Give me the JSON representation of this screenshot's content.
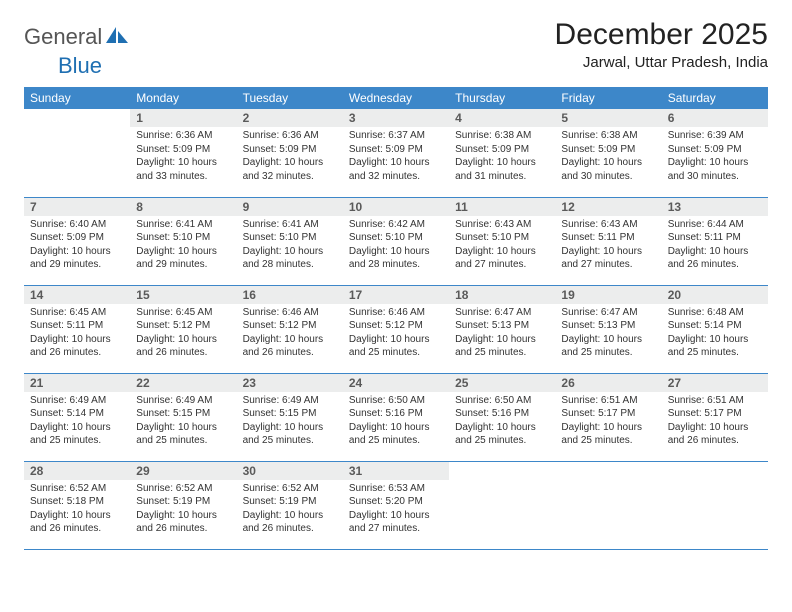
{
  "brand": {
    "general": "General",
    "blue": "Blue"
  },
  "title": "December 2025",
  "location": "Jarwal, Uttar Pradesh, India",
  "colors": {
    "header_bg": "#3d87c9",
    "header_fg": "#ffffff",
    "daynum_bg": "#eceded",
    "row_divider": "#3d87c9",
    "logo_blue": "#1f6fb2",
    "text": "#333333",
    "background": "#ffffff"
  },
  "fonts": {
    "title_size_pt": 22,
    "location_size_pt": 11,
    "weekday_size_pt": 9,
    "daynum_size_pt": 9,
    "body_size_pt": 7.5
  },
  "weekdays": [
    "Sunday",
    "Monday",
    "Tuesday",
    "Wednesday",
    "Thursday",
    "Friday",
    "Saturday"
  ],
  "weeks": [
    [
      {
        "empty": true
      },
      {
        "num": "1",
        "sunrise": "Sunrise: 6:36 AM",
        "sunset": "Sunset: 5:09 PM",
        "daylight": "Daylight: 10 hours and 33 minutes."
      },
      {
        "num": "2",
        "sunrise": "Sunrise: 6:36 AM",
        "sunset": "Sunset: 5:09 PM",
        "daylight": "Daylight: 10 hours and 32 minutes."
      },
      {
        "num": "3",
        "sunrise": "Sunrise: 6:37 AM",
        "sunset": "Sunset: 5:09 PM",
        "daylight": "Daylight: 10 hours and 32 minutes."
      },
      {
        "num": "4",
        "sunrise": "Sunrise: 6:38 AM",
        "sunset": "Sunset: 5:09 PM",
        "daylight": "Daylight: 10 hours and 31 minutes."
      },
      {
        "num": "5",
        "sunrise": "Sunrise: 6:38 AM",
        "sunset": "Sunset: 5:09 PM",
        "daylight": "Daylight: 10 hours and 30 minutes."
      },
      {
        "num": "6",
        "sunrise": "Sunrise: 6:39 AM",
        "sunset": "Sunset: 5:09 PM",
        "daylight": "Daylight: 10 hours and 30 minutes."
      }
    ],
    [
      {
        "num": "7",
        "sunrise": "Sunrise: 6:40 AM",
        "sunset": "Sunset: 5:09 PM",
        "daylight": "Daylight: 10 hours and 29 minutes."
      },
      {
        "num": "8",
        "sunrise": "Sunrise: 6:41 AM",
        "sunset": "Sunset: 5:10 PM",
        "daylight": "Daylight: 10 hours and 29 minutes."
      },
      {
        "num": "9",
        "sunrise": "Sunrise: 6:41 AM",
        "sunset": "Sunset: 5:10 PM",
        "daylight": "Daylight: 10 hours and 28 minutes."
      },
      {
        "num": "10",
        "sunrise": "Sunrise: 6:42 AM",
        "sunset": "Sunset: 5:10 PM",
        "daylight": "Daylight: 10 hours and 28 minutes."
      },
      {
        "num": "11",
        "sunrise": "Sunrise: 6:43 AM",
        "sunset": "Sunset: 5:10 PM",
        "daylight": "Daylight: 10 hours and 27 minutes."
      },
      {
        "num": "12",
        "sunrise": "Sunrise: 6:43 AM",
        "sunset": "Sunset: 5:11 PM",
        "daylight": "Daylight: 10 hours and 27 minutes."
      },
      {
        "num": "13",
        "sunrise": "Sunrise: 6:44 AM",
        "sunset": "Sunset: 5:11 PM",
        "daylight": "Daylight: 10 hours and 26 minutes."
      }
    ],
    [
      {
        "num": "14",
        "sunrise": "Sunrise: 6:45 AM",
        "sunset": "Sunset: 5:11 PM",
        "daylight": "Daylight: 10 hours and 26 minutes."
      },
      {
        "num": "15",
        "sunrise": "Sunrise: 6:45 AM",
        "sunset": "Sunset: 5:12 PM",
        "daylight": "Daylight: 10 hours and 26 minutes."
      },
      {
        "num": "16",
        "sunrise": "Sunrise: 6:46 AM",
        "sunset": "Sunset: 5:12 PM",
        "daylight": "Daylight: 10 hours and 26 minutes."
      },
      {
        "num": "17",
        "sunrise": "Sunrise: 6:46 AM",
        "sunset": "Sunset: 5:12 PM",
        "daylight": "Daylight: 10 hours and 25 minutes."
      },
      {
        "num": "18",
        "sunrise": "Sunrise: 6:47 AM",
        "sunset": "Sunset: 5:13 PM",
        "daylight": "Daylight: 10 hours and 25 minutes."
      },
      {
        "num": "19",
        "sunrise": "Sunrise: 6:47 AM",
        "sunset": "Sunset: 5:13 PM",
        "daylight": "Daylight: 10 hours and 25 minutes."
      },
      {
        "num": "20",
        "sunrise": "Sunrise: 6:48 AM",
        "sunset": "Sunset: 5:14 PM",
        "daylight": "Daylight: 10 hours and 25 minutes."
      }
    ],
    [
      {
        "num": "21",
        "sunrise": "Sunrise: 6:49 AM",
        "sunset": "Sunset: 5:14 PM",
        "daylight": "Daylight: 10 hours and 25 minutes."
      },
      {
        "num": "22",
        "sunrise": "Sunrise: 6:49 AM",
        "sunset": "Sunset: 5:15 PM",
        "daylight": "Daylight: 10 hours and 25 minutes."
      },
      {
        "num": "23",
        "sunrise": "Sunrise: 6:49 AM",
        "sunset": "Sunset: 5:15 PM",
        "daylight": "Daylight: 10 hours and 25 minutes."
      },
      {
        "num": "24",
        "sunrise": "Sunrise: 6:50 AM",
        "sunset": "Sunset: 5:16 PM",
        "daylight": "Daylight: 10 hours and 25 minutes."
      },
      {
        "num": "25",
        "sunrise": "Sunrise: 6:50 AM",
        "sunset": "Sunset: 5:16 PM",
        "daylight": "Daylight: 10 hours and 25 minutes."
      },
      {
        "num": "26",
        "sunrise": "Sunrise: 6:51 AM",
        "sunset": "Sunset: 5:17 PM",
        "daylight": "Daylight: 10 hours and 25 minutes."
      },
      {
        "num": "27",
        "sunrise": "Sunrise: 6:51 AM",
        "sunset": "Sunset: 5:17 PM",
        "daylight": "Daylight: 10 hours and 26 minutes."
      }
    ],
    [
      {
        "num": "28",
        "sunrise": "Sunrise: 6:52 AM",
        "sunset": "Sunset: 5:18 PM",
        "daylight": "Daylight: 10 hours and 26 minutes."
      },
      {
        "num": "29",
        "sunrise": "Sunrise: 6:52 AM",
        "sunset": "Sunset: 5:19 PM",
        "daylight": "Daylight: 10 hours and 26 minutes."
      },
      {
        "num": "30",
        "sunrise": "Sunrise: 6:52 AM",
        "sunset": "Sunset: 5:19 PM",
        "daylight": "Daylight: 10 hours and 26 minutes."
      },
      {
        "num": "31",
        "sunrise": "Sunrise: 6:53 AM",
        "sunset": "Sunset: 5:20 PM",
        "daylight": "Daylight: 10 hours and 27 minutes."
      },
      {
        "empty": true
      },
      {
        "empty": true
      },
      {
        "empty": true
      }
    ]
  ]
}
